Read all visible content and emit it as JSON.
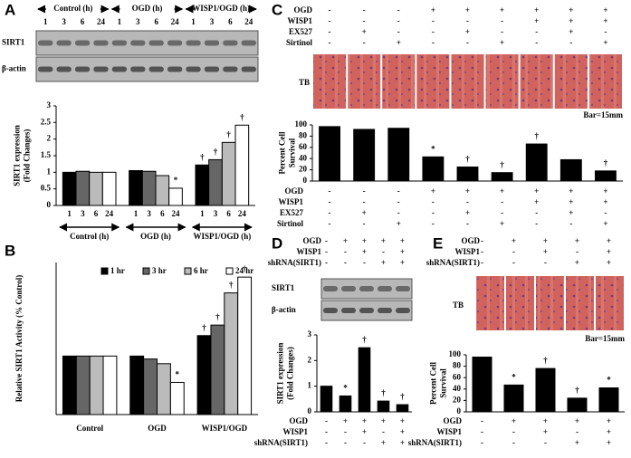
{
  "chart_data": [
    {
      "type": "bar",
      "panel": "A",
      "ylabel": [
        "SIRT1 expression",
        "(Fold Changes)"
      ],
      "blot_labels": [
        "SIRT1",
        "β-actin"
      ],
      "categories": [
        "Control (h)",
        "OGD (h)",
        "WISP1/OGD (h)"
      ],
      "series": [
        {
          "name": "1",
          "color": "#000000",
          "values": [
            1.0,
            1.05,
            1.22
          ],
          "markers": [
            null,
            null,
            "†"
          ]
        },
        {
          "name": "3",
          "color": "#666666",
          "values": [
            1.03,
            1.03,
            1.38
          ],
          "markers": [
            null,
            null,
            "†"
          ]
        },
        {
          "name": "6",
          "color": "#bbbbbb",
          "values": [
            1.0,
            0.9,
            1.9
          ],
          "markers": [
            null,
            null,
            "†"
          ]
        },
        {
          "name": "24",
          "color": "#ffffff",
          "values": [
            1.0,
            0.52,
            2.42
          ],
          "markers": [
            null,
            "*",
            "†"
          ]
        }
      ],
      "ylim": [
        0,
        3
      ],
      "yticks": [
        0,
        0.5,
        1,
        1.5,
        2,
        2.5,
        3
      ]
    },
    {
      "type": "bar",
      "panel": "B",
      "ylabel": [
        "Relative SIRT1 Activity (% Control)"
      ],
      "categories": [
        "Control",
        "OGD",
        "WISP1/OGD"
      ],
      "series": [
        {
          "name": "1 hr",
          "color": "#000000",
          "values": [
            1.0,
            1.0,
            1.35
          ],
          "markers": [
            null,
            null,
            "†"
          ]
        },
        {
          "name": "3 hr",
          "color": "#666666",
          "values": [
            1.0,
            0.95,
            1.53
          ],
          "markers": [
            null,
            null,
            "†"
          ]
        },
        {
          "name": "6 hr",
          "color": "#bbbbbb",
          "values": [
            1.0,
            0.87,
            2.08
          ],
          "markers": [
            null,
            null,
            "†"
          ]
        },
        {
          "name": "24 hr",
          "color": "#ffffff",
          "values": [
            1.0,
            0.55,
            2.35
          ],
          "markers": [
            null,
            "*",
            "†"
          ]
        }
      ],
      "ylim": [
        0,
        2.6
      ],
      "legend": "top-left"
    },
    {
      "type": "bar",
      "panel": "C",
      "ylabel": [
        "Percent Cell",
        "Survival"
      ],
      "image_labels": [
        "TB",
        "Bar=15mm"
      ],
      "values": [
        97,
        92,
        94,
        43,
        25,
        15,
        66,
        38,
        18
      ],
      "color": "#000000",
      "markers": [
        null,
        null,
        null,
        "*",
        "†",
        "†",
        "†",
        null,
        "†"
      ],
      "ylim": [
        0,
        100
      ],
      "yticks": [
        0,
        20,
        40,
        60,
        80,
        100
      ],
      "conditions": [
        {
          "label": "OGD",
          "marks": [
            "-",
            "-",
            "-",
            "+",
            "+",
            "+",
            "+",
            "+",
            "+"
          ]
        },
        {
          "label": "WISP1",
          "marks": [
            "-",
            "-",
            "-",
            "-",
            "-",
            "-",
            "+",
            "+",
            "+"
          ]
        },
        {
          "label": "EX527",
          "marks": [
            "-",
            "+",
            "-",
            "-",
            "+",
            "-",
            "-",
            "+",
            "-"
          ]
        },
        {
          "label": "Sirtinol",
          "marks": [
            "-",
            "-",
            "+",
            "-",
            "-",
            "+",
            "-",
            "-",
            "+"
          ]
        }
      ]
    },
    {
      "type": "bar",
      "panel": "D",
      "ylabel": [
        "SIRT1 expression",
        "(Fold Changes)"
      ],
      "blot_labels": [
        "SIRT1",
        "β-actin"
      ],
      "values": [
        1.0,
        0.62,
        2.5,
        0.42,
        0.28
      ],
      "color": "#000000",
      "markers": [
        null,
        "*",
        "†",
        "†",
        "†"
      ],
      "ylim": [
        0,
        3
      ],
      "yticks": [
        0,
        1,
        2,
        3
      ],
      "conditions": [
        {
          "label": "OGD",
          "marks": [
            "-",
            "+",
            "+",
            "+",
            "+"
          ]
        },
        {
          "label": "WISP1",
          "marks": [
            "-",
            "-",
            "+",
            "-",
            "+"
          ]
        },
        {
          "label": "shRNA(SIRT1)",
          "marks": [
            "-",
            "-",
            "-",
            "+",
            "+"
          ]
        }
      ]
    },
    {
      "type": "bar",
      "panel": "E",
      "ylabel": [
        "Percent Cell",
        "Survival"
      ],
      "image_labels": [
        "TB",
        "Bar=15mm"
      ],
      "values": [
        96,
        47,
        76,
        24,
        42
      ],
      "color": "#000000",
      "markers": [
        null,
        "*",
        "†",
        "†",
        "*"
      ],
      "ylim": [
        0,
        100
      ],
      "yticks": [
        0,
        20,
        40,
        60,
        80,
        100
      ],
      "conditions": [
        {
          "label": "OGD",
          "marks": [
            "-",
            "+",
            "+",
            "+",
            "+"
          ]
        },
        {
          "label": "WISP1",
          "marks": [
            "-",
            "-",
            "+",
            "-",
            "+"
          ]
        },
        {
          "label": "shRNA(SIRT1)",
          "marks": [
            "-",
            "-",
            "-",
            "+",
            "+"
          ]
        }
      ]
    }
  ]
}
